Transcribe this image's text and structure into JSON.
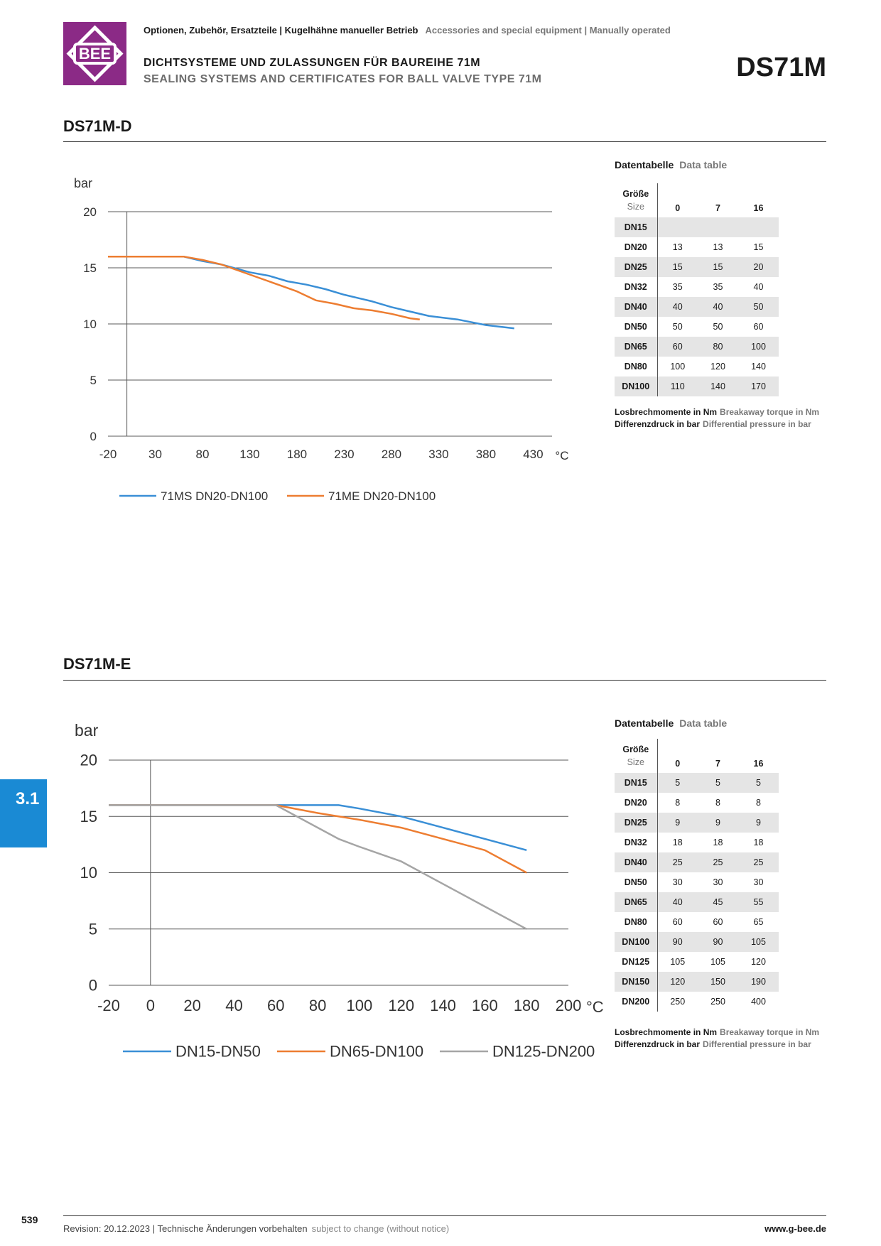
{
  "header": {
    "breadcrumb_de": "Optionen, Zubehör, Ersatzteile | Kugelhähne manueller Betrieb",
    "breadcrumb_en": "Accessories and special equipment | Manually operated",
    "title_de": "DICHTSYSTEME UND ZULASSUNGEN FÜR BAUREIHE 71M",
    "title_en": "SEALING SYSTEMS AND CERTIFICATES FOR BALL VALVE TYPE 71M",
    "code": "DS71M",
    "logo_text": "BEE",
    "logo_color": "#8b2a86"
  },
  "sections": [
    {
      "title": "DS71M-D",
      "table_head_de": "Datentabelle",
      "table_head_en": "Data table",
      "table": {
        "size_de": "Größe",
        "size_en": "Size",
        "columns": [
          "0",
          "7",
          "16"
        ],
        "rows": [
          {
            "size": "DN15",
            "v": [
              "",
              "",
              ""
            ]
          },
          {
            "size": "DN20",
            "v": [
              "13",
              "13",
              "15"
            ]
          },
          {
            "size": "DN25",
            "v": [
              "15",
              "15",
              "20"
            ]
          },
          {
            "size": "DN32",
            "v": [
              "35",
              "35",
              "40"
            ]
          },
          {
            "size": "DN40",
            "v": [
              "40",
              "40",
              "50"
            ]
          },
          {
            "size": "DN50",
            "v": [
              "50",
              "50",
              "60"
            ]
          },
          {
            "size": "DN65",
            "v": [
              "60",
              "80",
              "100"
            ]
          },
          {
            "size": "DN80",
            "v": [
              "100",
              "120",
              "140"
            ]
          },
          {
            "size": "DN100",
            "v": [
              "110",
              "140",
              "170"
            ]
          }
        ]
      },
      "note_torque_de": "Losbrechmomente in Nm",
      "note_torque_en": "Breakaway torque in Nm",
      "note_pressure_de": "Differenzdruck in bar",
      "note_pressure_en": "Differential pressure in bar"
    },
    {
      "title": "DS71M-E",
      "table_head_de": "Datentabelle",
      "table_head_en": "Data table",
      "table": {
        "size_de": "Größe",
        "size_en": "Size",
        "columns": [
          "0",
          "7",
          "16"
        ],
        "rows": [
          {
            "size": "DN15",
            "v": [
              "5",
              "5",
              "5"
            ]
          },
          {
            "size": "DN20",
            "v": [
              "8",
              "8",
              "8"
            ]
          },
          {
            "size": "DN25",
            "v": [
              "9",
              "9",
              "9"
            ]
          },
          {
            "size": "DN32",
            "v": [
              "18",
              "18",
              "18"
            ]
          },
          {
            "size": "DN40",
            "v": [
              "25",
              "25",
              "25"
            ]
          },
          {
            "size": "DN50",
            "v": [
              "30",
              "30",
              "30"
            ]
          },
          {
            "size": "DN65",
            "v": [
              "40",
              "45",
              "55"
            ]
          },
          {
            "size": "DN80",
            "v": [
              "60",
              "60",
              "65"
            ]
          },
          {
            "size": "DN100",
            "v": [
              "90",
              "90",
              "105"
            ]
          },
          {
            "size": "DN125",
            "v": [
              "105",
              "105",
              "120"
            ]
          },
          {
            "size": "DN150",
            "v": [
              "120",
              "150",
              "190"
            ]
          },
          {
            "size": "DN200",
            "v": [
              "250",
              "250",
              "400"
            ]
          }
        ]
      },
      "note_torque_de": "Losbrechmomente in Nm",
      "note_torque_en": "Breakaway torque in Nm",
      "note_pressure_de": "Differenzdruck in bar",
      "note_pressure_en": "Differential pressure in bar"
    }
  ],
  "chart_data": [
    {
      "type": "line",
      "ylabel": "bar",
      "xunit": "°C",
      "xlim": [
        -20,
        450
      ],
      "ylim": [
        0,
        20
      ],
      "x_ticks": [
        -20,
        30,
        80,
        130,
        180,
        230,
        280,
        330,
        380,
        430
      ],
      "y_ticks": [
        0,
        5,
        10,
        15,
        20
      ],
      "grid": "horizontal",
      "legend": "bottom",
      "series": [
        {
          "name": "71MS DN20-DN100",
          "color": "#3a8fd6",
          "points": [
            [
              -20,
              16
            ],
            [
              60,
              16
            ],
            [
              80,
              15.6
            ],
            [
              100,
              15.3
            ],
            [
              130,
              14.6
            ],
            [
              150,
              14.3
            ],
            [
              170,
              13.8
            ],
            [
              190,
              13.5
            ],
            [
              210,
              13.1
            ],
            [
              230,
              12.6
            ],
            [
              260,
              12
            ],
            [
              280,
              11.5
            ],
            [
              300,
              11.1
            ],
            [
              320,
              10.7
            ],
            [
              350,
              10.4
            ],
            [
              380,
              9.9
            ],
            [
              410,
              9.6
            ]
          ]
        },
        {
          "name": "71ME DN20-DN100",
          "color": "#ed7d31",
          "points": [
            [
              -20,
              16
            ],
            [
              60,
              16
            ],
            [
              80,
              15.7
            ],
            [
              100,
              15.3
            ],
            [
              130,
              14.4
            ],
            [
              160,
              13.5
            ],
            [
              180,
              12.9
            ],
            [
              200,
              12.1
            ],
            [
              220,
              11.8
            ],
            [
              240,
              11.4
            ],
            [
              260,
              11.2
            ],
            [
              280,
              10.9
            ],
            [
              300,
              10.5
            ],
            [
              310,
              10.4
            ]
          ]
        }
      ]
    },
    {
      "type": "line",
      "ylabel": "bar",
      "xunit": "°C",
      "xlim": [
        -20,
        200
      ],
      "ylim": [
        0,
        20
      ],
      "x_ticks": [
        -20,
        0,
        20,
        40,
        60,
        80,
        100,
        120,
        140,
        160,
        180,
        200
      ],
      "y_ticks": [
        0,
        5,
        10,
        15,
        20
      ],
      "grid": "horizontal",
      "legend": "bottom",
      "series": [
        {
          "name": "DN15-DN50",
          "color": "#3a8fd6",
          "points": [
            [
              -20,
              16
            ],
            [
              90,
              16
            ],
            [
              100,
              15.7
            ],
            [
              120,
              15
            ],
            [
              140,
              14
            ],
            [
              160,
              13
            ],
            [
              180,
              12
            ]
          ]
        },
        {
          "name": "DN65-DN100",
          "color": "#ed7d31",
          "points": [
            [
              -20,
              16
            ],
            [
              60,
              16
            ],
            [
              80,
              15.3
            ],
            [
              100,
              14.7
            ],
            [
              120,
              14
            ],
            [
              140,
              13
            ],
            [
              160,
              12
            ],
            [
              180,
              10
            ]
          ]
        },
        {
          "name": "DN125-DN200",
          "color": "#a5a5a5",
          "points": [
            [
              -20,
              16
            ],
            [
              60,
              16
            ],
            [
              90,
              13
            ],
            [
              100,
              12.3
            ],
            [
              120,
              11
            ],
            [
              140,
              9
            ],
            [
              160,
              7
            ],
            [
              180,
              5
            ]
          ]
        }
      ]
    }
  ],
  "side_tab": "3.1",
  "footer": {
    "page": "539",
    "revision_de": "Revision: 20.12.2023 | Technische Änderungen vorbehalten",
    "revision_en": "subject to change (without notice)",
    "website": "www.g-bee.de"
  }
}
